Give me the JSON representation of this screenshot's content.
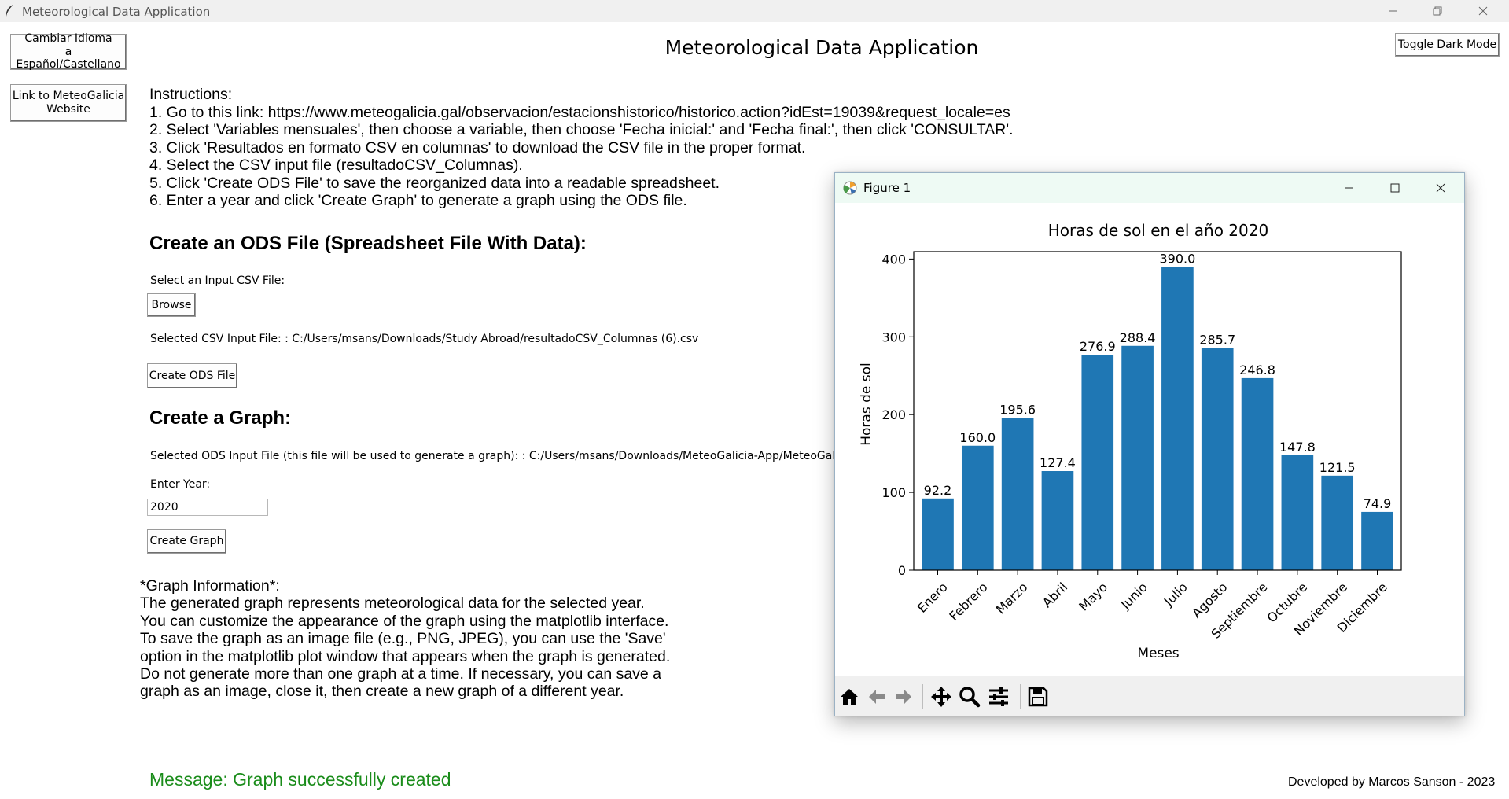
{
  "window": {
    "title": "Meteorological Data Application"
  },
  "sidebar": {
    "language_button": "Cambiar Idioma\na Español/Castellano",
    "link_button": "Link to MeteoGalicia\nWebsite"
  },
  "header": {
    "title": "Meteorological Data Application",
    "dark_mode_button": "Toggle Dark Mode"
  },
  "instructions": {
    "heading": "Instructions:",
    "steps": [
      "1. Go to this link: https://www.meteogalicia.gal/observacion/estacionshistorico/historico.action?idEst=19039&request_locale=es",
      "2. Select 'Variables mensuales', then choose a variable, then choose 'Fecha inicial:' and 'Fecha final:', then click 'CONSULTAR'.",
      "3. Click 'Resultados en formato CSV en columnas' to download the CSV file in the proper format.",
      "4. Select the CSV input file (resultadoCSV_Columnas).",
      "5. Click 'Create ODS File' to save the reorganized data into a readable spreadsheet.",
      "6. Enter a year and click 'Create Graph' to generate a graph using the ODS file."
    ]
  },
  "ods_section": {
    "heading": "Create an ODS File (Spreadsheet File With Data):",
    "select_label": "Select an Input CSV File:",
    "browse_button": "Browse",
    "selected_csv": "Selected CSV Input File: : C:/Users/msans/Downloads/Study Abroad/resultadoCSV_Columnas (6).csv",
    "create_button": "Create ODS File"
  },
  "graph_section": {
    "heading": "Create a Graph:",
    "selected_ods": "Selected ODS Input File (this file will be used to generate a graph): : C:/Users/msans/Downloads/MeteoGalicia-App/MeteoGalicia-Ap",
    "year_label": "Enter Year:",
    "year_value": "2020",
    "create_button": "Create Graph"
  },
  "graph_info": {
    "heading": "*Graph Information*:",
    "lines": [
      "The generated graph represents meteorological data for the selected year.",
      "You can customize the appearance of the graph using the matplotlib interface.",
      "To save the graph as an image file (e.g., PNG, JPEG), you can use the 'Save'",
      "option in the matplotlib plot window that appears when the graph is generated.",
      "Do not generate more than one graph at a time. If necessary, you can save a",
      "graph as an image, close it, then create a new graph of a different year."
    ]
  },
  "footer": {
    "message": "Message: Graph successfully created",
    "message_color": "#1a8c1a",
    "credit": "Developed by Marcos Sanson - 2023"
  },
  "figure_window": {
    "title": "Figure 1",
    "toolbar_icons": [
      "home-icon",
      "back-icon",
      "forward-icon",
      "pan-icon",
      "zoom-icon",
      "configure-subplots-icon",
      "save-icon"
    ]
  },
  "chart_data": {
    "type": "bar",
    "title": "Horas de sol en el año 2020",
    "xlabel": "Meses",
    "ylabel": "Horas de sol",
    "categories": [
      "Enero",
      "Febrero",
      "Marzo",
      "Abril",
      "Mayo",
      "Junio",
      "Julio",
      "Agosto",
      "Septiembre",
      "Octubre",
      "Noviembre",
      "Diciembre"
    ],
    "values": [
      92.2,
      160.0,
      195.6,
      127.4,
      276.9,
      288.4,
      390.0,
      285.7,
      246.8,
      147.8,
      121.5,
      74.9
    ],
    "value_labels": [
      "92.2",
      "160.0",
      "195.6",
      "127.4",
      "276.9",
      "288.4",
      "390.0",
      "285.7",
      "246.8",
      "147.8",
      "121.5",
      "74.9"
    ],
    "ylim": [
      0,
      409.5
    ],
    "yticks": [
      0,
      100,
      200,
      300,
      400
    ],
    "bar_color": "#1f77b4",
    "grid": false,
    "legend": "none"
  }
}
